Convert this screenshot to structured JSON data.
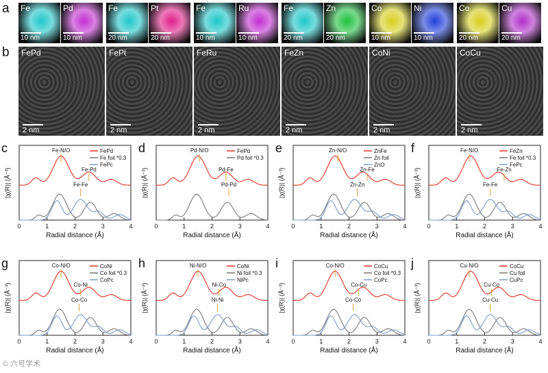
{
  "top_row": {
    "label": "a",
    "maps": [
      {
        "el": "Fe",
        "scale": "10 nm",
        "color": "#1fc6c9"
      },
      {
        "el": "Pd",
        "scale": "10 nm",
        "color": "#c12fd0"
      },
      {
        "el": "Fe",
        "scale": "20 nm",
        "color": "#1fc6c9"
      },
      {
        "el": "Pt",
        "scale": "20 nm",
        "color": "#e0208a"
      },
      {
        "el": "Fe",
        "scale": "10 nm",
        "color": "#1fc6c9"
      },
      {
        "el": "Ru",
        "scale": "10 nm",
        "color": "#c12fd0"
      },
      {
        "el": "Fe",
        "scale": "20 nm",
        "color": "#1fc6c9"
      },
      {
        "el": "Zn",
        "scale": "20 nm",
        "color": "#20c040"
      },
      {
        "el": "Co",
        "scale": "10 nm",
        "color": "#d7d020"
      },
      {
        "el": "Ni",
        "scale": "10 nm",
        "color": "#2040d8"
      },
      {
        "el": "Co",
        "scale": "20 nm",
        "color": "#d7d020"
      },
      {
        "el": "Cu",
        "scale": "20 nm",
        "color": "#b030c8"
      }
    ]
  },
  "tem_row": {
    "label": "b",
    "images": [
      {
        "name": "FePd",
        "scale": "2 nm"
      },
      {
        "name": "FePt",
        "scale": "2 nm"
      },
      {
        "name": "FeRu",
        "scale": "2 nm"
      },
      {
        "name": "FeZn",
        "scale": "2 nm"
      },
      {
        "name": "CoNi",
        "scale": "2 nm"
      },
      {
        "name": "CoCu",
        "scale": "2 nm"
      }
    ]
  },
  "common": {
    "xlabel": "Radial distance (Å)",
    "ylabel": "|χ(R)| (Å⁻³)",
    "xticks": [
      "0",
      "1",
      "2",
      "3",
      "4"
    ]
  },
  "colors": {
    "red": "#e03020",
    "gray": "#777777",
    "blue": "#7a9ac8",
    "ann": "#d9a030"
  },
  "watermark": "© 六号学术",
  "chart_data": [
    {
      "panel": "c",
      "type": "line",
      "xlim": [
        0,
        4
      ],
      "legend": [
        "FePd",
        "Fe foil *0.3",
        "FePc"
      ],
      "annotations": [
        {
          "text": "Fe-N/O",
          "x": 1.5
        },
        {
          "text": "Fe-Pd",
          "x": 2.5
        },
        {
          "text": "Fe-Fe",
          "x": 2.2
        }
      ]
    },
    {
      "panel": "d",
      "type": "line",
      "xlim": [
        0,
        4
      ],
      "legend": [
        "FePd",
        "Pd foil *0.3"
      ],
      "annotations": [
        {
          "text": "Pd-N/O",
          "x": 1.55
        },
        {
          "text": "Pd-Fe",
          "x": 2.5
        },
        {
          "text": "Pd-Pd",
          "x": 2.6
        }
      ]
    },
    {
      "panel": "e",
      "type": "line",
      "xlim": [
        0,
        4
      ],
      "legend": [
        "ZnFe",
        "Zn foil",
        "ZnO"
      ],
      "annotations": [
        {
          "text": "Zn-N/O",
          "x": 1.6
        },
        {
          "text": "Zn-Fe",
          "x": 2.65
        },
        {
          "text": "Zn-Zn",
          "x": 2.3
        }
      ]
    },
    {
      "panel": "f",
      "type": "line",
      "xlim": [
        0,
        4
      ],
      "legend": [
        "FeZn",
        "Fe foil *0.3",
        "FePc"
      ],
      "annotations": [
        {
          "text": "Fe-N/O",
          "x": 1.45
        },
        {
          "text": "Fe-Zn",
          "x": 2.7
        },
        {
          "text": "Fe-Fe",
          "x": 2.2
        }
      ]
    },
    {
      "panel": "g",
      "type": "line",
      "xlim": [
        0,
        4
      ],
      "legend": [
        "CoNi",
        "Co foil *0.3",
        "CoPc"
      ],
      "annotations": [
        {
          "text": "Co-N/O",
          "x": 1.5
        },
        {
          "text": "Co-Ni",
          "x": 2.2
        },
        {
          "text": "Co-Co",
          "x": 2.15
        }
      ]
    },
    {
      "panel": "h",
      "type": "line",
      "xlim": [
        0,
        4
      ],
      "legend": [
        "CoNi",
        "Ni foil *0.3",
        "NiPc"
      ],
      "annotations": [
        {
          "text": "Ni-N/O",
          "x": 1.5
        },
        {
          "text": "Ni-Co",
          "x": 2.25
        },
        {
          "text": "Ni-Ni",
          "x": 2.2
        }
      ]
    },
    {
      "panel": "i",
      "type": "line",
      "xlim": [
        0,
        4
      ],
      "legend": [
        "CoCu",
        "Co foil *0.3",
        "CoPc"
      ],
      "annotations": [
        {
          "text": "Co-N/O",
          "x": 1.5
        },
        {
          "text": "Co-Cu",
          "x": 2.35
        },
        {
          "text": "Co-Co",
          "x": 2.15
        }
      ]
    },
    {
      "panel": "j",
      "type": "line",
      "xlim": [
        0,
        4
      ],
      "legend": [
        "CoCu",
        "Cu foil",
        "CuPc"
      ],
      "annotations": [
        {
          "text": "Cu-N/O",
          "x": 1.45
        },
        {
          "text": "Cu-Co",
          "x": 2.25
        },
        {
          "text": "Cu-Cu",
          "x": 2.2
        }
      ]
    }
  ]
}
